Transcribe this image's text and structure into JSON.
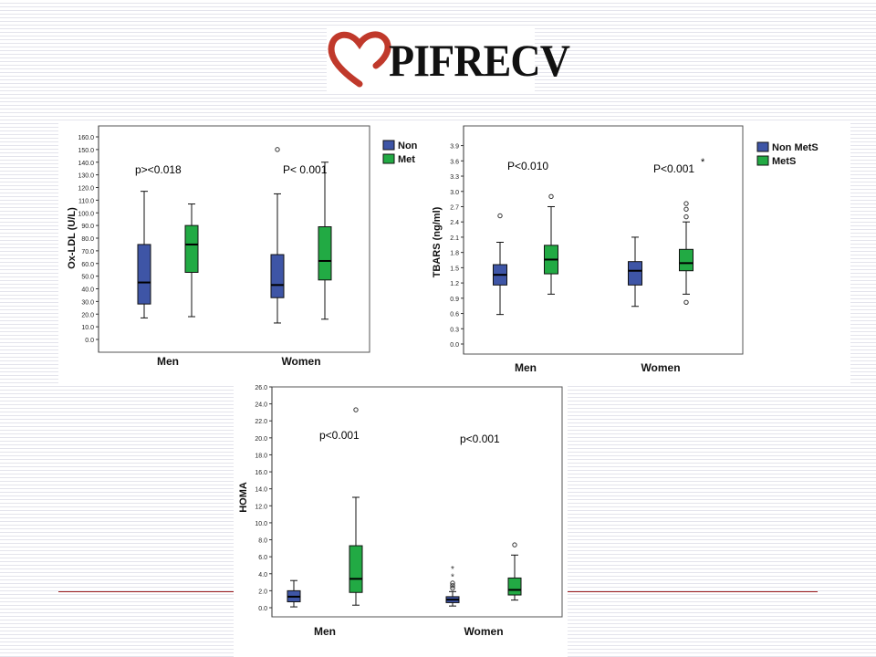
{
  "logo": {
    "text": "PIFRECV",
    "accent_color": "#c0392b"
  },
  "colors": {
    "non_mets": "#3e55a6",
    "mets": "#22aa44",
    "rule": "#9b1b1b"
  },
  "legend": {
    "non_mets": "Non MetS",
    "mets": "MetS"
  },
  "legend_truncated": {
    "non_mets": "Non",
    "mets": "Met"
  },
  "chart_data": [
    {
      "type": "boxplot",
      "ylabel": "Ox-LDL (U/L)",
      "categories": [
        "Men",
        "Women"
      ],
      "ylim": [
        0,
        160
      ],
      "yticks": [
        0,
        10,
        20,
        30,
        40,
        50,
        60,
        70,
        80,
        90,
        100,
        110,
        120,
        130,
        140,
        150,
        160
      ],
      "tick_decimals": 1,
      "legend": "truncated",
      "annotations": [
        "p><0.018",
        "P< 0.001"
      ],
      "series": [
        {
          "name": "Non MetS",
          "boxes": [
            {
              "min": 17,
              "q1": 28,
              "median": 45,
              "q3": 75,
              "max": 117,
              "outliers": []
            },
            {
              "min": 13,
              "q1": 33,
              "median": 43,
              "q3": 67,
              "max": 115,
              "outliers": [
                150
              ]
            }
          ]
        },
        {
          "name": "MetS",
          "boxes": [
            {
              "min": 18,
              "q1": 53,
              "median": 75,
              "q3": 90,
              "max": 107,
              "outliers": []
            },
            {
              "min": 16,
              "q1": 47,
              "median": 62,
              "q3": 89,
              "max": 140,
              "outliers": []
            }
          ]
        }
      ]
    },
    {
      "type": "boxplot",
      "ylabel": "TBARS (ng/ml)",
      "categories": [
        "Men",
        "Women"
      ],
      "ylim": [
        0,
        4.0
      ],
      "yticks": [
        0,
        0.3,
        0.6,
        0.9,
        1.2,
        1.5,
        1.8,
        2.1,
        2.4,
        2.7,
        3.0,
        3.3,
        3.6,
        3.9
      ],
      "tick_decimals": 1,
      "legend": "full",
      "annotations": [
        "P<0.010",
        "P<0.001",
        "*"
      ],
      "series": [
        {
          "name": "Non MetS",
          "boxes": [
            {
              "min": 0.58,
              "q1": 1.16,
              "median": 1.36,
              "q3": 1.56,
              "max": 2.0,
              "outliers": [
                2.52
              ]
            },
            {
              "min": 0.74,
              "q1": 1.16,
              "median": 1.44,
              "q3": 1.62,
              "max": 2.1,
              "outliers": []
            }
          ]
        },
        {
          "name": "MetS",
          "boxes": [
            {
              "min": 0.98,
              "q1": 1.38,
              "median": 1.66,
              "q3": 1.94,
              "max": 2.7,
              "outliers": [
                2.9
              ]
            },
            {
              "min": 0.98,
              "q1": 1.44,
              "median": 1.59,
              "q3": 1.86,
              "max": 2.4,
              "outliers": [
                2.5,
                2.65,
                2.76,
                0.82
              ]
            }
          ]
        }
      ]
    },
    {
      "type": "boxplot",
      "ylabel": "HOMA",
      "categories": [
        "Men",
        "Women"
      ],
      "ylim": [
        0,
        26
      ],
      "yticks": [
        0,
        2,
        4,
        6,
        8,
        10,
        12,
        14,
        16,
        18,
        20,
        22,
        24,
        26
      ],
      "tick_decimals": 1,
      "legend": "none",
      "annotations": [
        "p<0.001",
        "p<0.001"
      ],
      "series": [
        {
          "name": "Non MetS",
          "boxes": [
            {
              "min": 0.1,
              "q1": 0.7,
              "median": 1.3,
              "q3": 2.0,
              "max": 3.2,
              "outliers": []
            },
            {
              "min": 0.2,
              "q1": 0.6,
              "median": 0.95,
              "q3": 1.3,
              "max": 1.9,
              "outliers": [
                2.3,
                2.6,
                2.9
              ],
              "extremes": [
                3.7,
                4.6
              ]
            }
          ]
        },
        {
          "name": "MetS",
          "boxes": [
            {
              "min": 0.3,
              "q1": 1.8,
              "median": 3.4,
              "q3": 7.3,
              "max": 13.0,
              "outliers": [
                23.3
              ]
            },
            {
              "min": 0.9,
              "q1": 1.5,
              "median": 2.1,
              "q3": 3.5,
              "max": 6.2,
              "outliers": [
                7.4
              ]
            }
          ]
        }
      ]
    }
  ]
}
